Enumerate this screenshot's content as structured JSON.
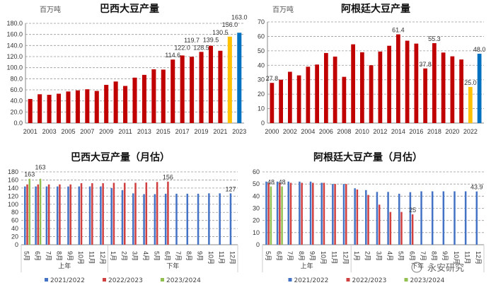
{
  "chart_data": [
    {
      "type": "bar",
      "title": "巴西大豆产量",
      "ylabel": "百万吨",
      "ylim": [
        0,
        180
      ],
      "ytick_step": 20,
      "ytick_decimals": 1,
      "grid": true,
      "x_tick_labels": [
        "2001",
        "2003",
        "2005",
        "2007",
        "2009",
        "2011",
        "2013",
        "2015",
        "2017",
        "2019",
        "2021",
        "2023"
      ],
      "categories": [
        "2001",
        "2002",
        "2003",
        "2004",
        "2005",
        "2006",
        "2007",
        "2008",
        "2009",
        "2010",
        "2011",
        "2012",
        "2013",
        "2014",
        "2015",
        "2016",
        "2017",
        "2018",
        "2019",
        "2020",
        "2021",
        "2022",
        "2023"
      ],
      "values": [
        43.5,
        52,
        51,
        53,
        57,
        59,
        61,
        58,
        69,
        75,
        67,
        82,
        87,
        97,
        96.5,
        114.6,
        122.0,
        119.7,
        128.5,
        139.5,
        130.5,
        156.0,
        163.0
      ],
      "colors": [
        "#c00000",
        "#c00000",
        "#c00000",
        "#c00000",
        "#c00000",
        "#c00000",
        "#c00000",
        "#c00000",
        "#c00000",
        "#c00000",
        "#c00000",
        "#c00000",
        "#c00000",
        "#c00000",
        "#c00000",
        "#c00000",
        "#c00000",
        "#c00000",
        "#c00000",
        "#c00000",
        "#c00000",
        "#ffc000",
        "#0070c0"
      ],
      "data_labels": [
        "",
        "",
        "",
        "",
        "",
        "",
        "",
        "",
        "",
        "",
        "",
        "",
        "",
        "",
        "",
        "114.6",
        "122.0",
        "119.7",
        "128.5",
        "139.5",
        "130.5",
        "156.0",
        "163.0"
      ]
    },
    {
      "type": "bar",
      "title": "阿根廷大豆产量",
      "ylabel": "百万吨",
      "ylim": [
        0,
        70
      ],
      "ytick_step": 10,
      "ytick_decimals": 0,
      "grid": true,
      "x_tick_labels": [
        "2000",
        "2002",
        "2004",
        "2006",
        "2008",
        "2010",
        "2012",
        "2014",
        "2016",
        "2018",
        "2020",
        "2022"
      ],
      "categories": [
        "2000",
        "2001",
        "2002",
        "2003",
        "2004",
        "2005",
        "2006",
        "2007",
        "2008",
        "2009",
        "2010",
        "2011",
        "2012",
        "2013",
        "2014",
        "2015",
        "2016",
        "2017",
        "2018",
        "2019",
        "2020",
        "2021",
        "2022",
        "2023"
      ],
      "values": [
        27.8,
        30,
        35.5,
        33,
        39,
        40.5,
        48.5,
        46,
        32,
        54.5,
        49,
        40,
        49.5,
        53.5,
        61.4,
        57,
        55,
        37.8,
        55.3,
        48.8,
        46.2,
        44,
        25.0,
        48.0
      ],
      "colors": [
        "#c00000",
        "#c00000",
        "#c00000",
        "#c00000",
        "#c00000",
        "#c00000",
        "#c00000",
        "#c00000",
        "#c00000",
        "#c00000",
        "#c00000",
        "#c00000",
        "#c00000",
        "#c00000",
        "#c00000",
        "#c00000",
        "#c00000",
        "#c00000",
        "#c00000",
        "#c00000",
        "#c00000",
        "#c00000",
        "#ffc000",
        "#0070c0"
      ],
      "data_labels": [
        "27.8",
        "",
        "",
        "",
        "",
        "",
        "",
        "",
        "",
        "",
        "",
        "",
        "",
        "",
        "61.4",
        "",
        "",
        "37.8",
        "55.3",
        "",
        "",
        "",
        "25.0",
        "48.0"
      ]
    },
    {
      "type": "bar",
      "title": "巴西大豆产量（月估）",
      "ylim": [
        0,
        180
      ],
      "ytick_step": 20,
      "ytick_decimals": 0,
      "grid": true,
      "legend": "bottom",
      "groups": [
        {
          "label": "上年",
          "count": 8
        },
        {
          "label": "下年",
          "count": 12
        }
      ],
      "categories": [
        "5月",
        "6月",
        "7月",
        "8月",
        "9月",
        "10月",
        "11月",
        "12月",
        "1月",
        "2月",
        "3月",
        "4月",
        "5月",
        "6月",
        "7月",
        "8月",
        "9月",
        "10月",
        "11月",
        "12月"
      ],
      "series": [
        {
          "name": "2021/2022",
          "color": "#4472c4",
          "values": [
            144,
            144,
            144,
            144,
            144,
            144,
            144,
            144,
            140,
            135,
            127,
            125,
            125,
            126,
            126,
            126,
            126,
            127,
            127,
            127
          ],
          "data_labels": [
            "",
            "",
            "",
            "",
            "",
            "",
            "",
            "",
            "",
            "",
            "",
            "",
            "",
            "",
            "",
            "",
            "",
            "",
            "",
            "127"
          ]
        },
        {
          "name": "2022/2023",
          "color": "#d04040",
          "values": [
            149,
            149,
            149,
            149,
            149,
            152,
            152,
            152,
            153,
            153,
            153,
            154,
            155,
            156,
            null,
            null,
            null,
            null,
            null,
            null
          ],
          "data_labels": [
            "",
            "",
            "",
            "",
            "",
            "",
            "",
            "",
            "",
            "",
            "",
            "",
            "",
            "156",
            "",
            "",
            "",
            "",
            "",
            ""
          ]
        },
        {
          "name": "2023/2024",
          "color": "#92c050",
          "values": [
            163,
            163,
            null,
            null,
            null,
            null,
            null,
            null,
            null,
            null,
            null,
            null,
            null,
            null,
            null,
            null,
            null,
            null,
            null,
            null
          ],
          "data_labels": [
            "163",
            "163",
            "",
            "",
            "",
            "",
            "",
            "",
            "",
            "",
            "",
            "",
            "",
            "",
            "",
            "",
            "",
            "",
            "",
            ""
          ]
        }
      ]
    },
    {
      "type": "bar",
      "title": "阿根廷大豆产量（月估）",
      "ylim": [
        0,
        60
      ],
      "ytick_step": 10,
      "ytick_decimals": 0,
      "grid": true,
      "legend": "bottom",
      "groups": [
        {
          "label": "上年",
          "count": 8
        },
        {
          "label": "下年",
          "count": 12
        }
      ],
      "categories": [
        "5月",
        "6月",
        "7月",
        "8月",
        "9月",
        "10月",
        "11月",
        "12月",
        "1月",
        "2月",
        "3月",
        "4月",
        "5月",
        "6月",
        "7月",
        "8月",
        "9月",
        "10月",
        "11月",
        "12月"
      ],
      "series": [
        {
          "name": "2021/2022",
          "color": "#4472c4",
          "values": [
            52,
            52,
            52,
            52,
            52,
            51,
            50,
            50,
            46.5,
            45,
            43.5,
            43.5,
            42,
            43.3,
            44,
            44,
            44,
            44,
            44,
            43.9
          ],
          "data_labels": [
            "",
            "",
            "",
            "",
            "",
            "",
            "",
            "",
            "",
            "",
            "",
            "",
            "",
            "",
            "",
            "",
            "",
            "",
            "",
            "43.9"
          ]
        },
        {
          "name": "2022/2023",
          "color": "#d04040",
          "values": [
            51,
            51,
            51,
            51,
            51,
            51,
            50,
            50,
            45.5,
            41,
            33,
            27,
            27,
            25,
            null,
            null,
            null,
            null,
            null,
            null
          ],
          "data_labels": [
            "",
            "",
            "",
            "",
            "",
            "",
            "",
            "",
            "",
            "",
            "",
            "",
            "",
            "25",
            "",
            "",
            "",
            "",
            "",
            ""
          ]
        },
        {
          "name": "2023/2024",
          "color": "#92c050",
          "values": [
            48,
            48,
            null,
            null,
            null,
            null,
            null,
            null,
            null,
            null,
            null,
            null,
            null,
            null,
            null,
            null,
            null,
            null,
            null,
            null
          ],
          "data_labels": [
            "48",
            "48",
            "",
            "",
            "",
            "",
            "",
            "",
            "",
            "",
            "",
            "",
            "",
            "",
            "",
            "",
            "",
            "",
            "",
            ""
          ]
        }
      ]
    }
  ],
  "watermark": "永安研究"
}
